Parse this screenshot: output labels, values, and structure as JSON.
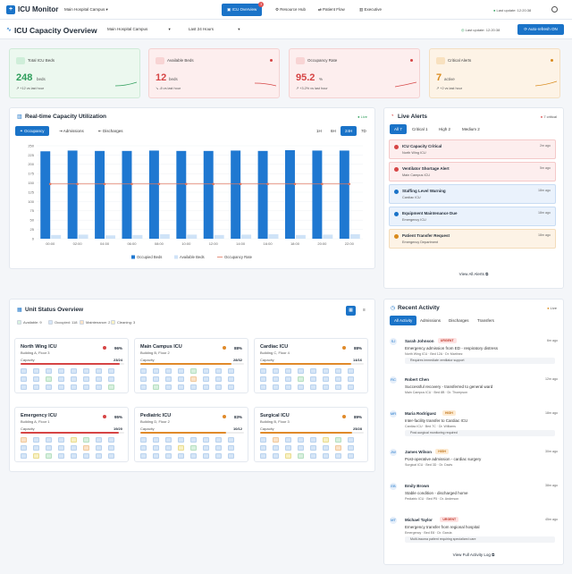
{
  "topbar": {
    "app_name": "ICU Monitor",
    "hospital_select": "Main Hospital Campus",
    "nav": [
      {
        "label": "ICU Overview",
        "active": true,
        "badge": "3"
      },
      {
        "label": "Resource Hub",
        "active": false
      },
      {
        "label": "Patient Flow",
        "active": false
      },
      {
        "label": "Executive",
        "active": false
      }
    ],
    "last_update": "Last update: 12:20:38"
  },
  "header": {
    "title": "ICU Capacity Overview",
    "campus_select": "Main Hospital Campus",
    "range_select": "Last 24 Hours",
    "last_update": "Last update: 12:20:38",
    "auto_refresh_label": "Auto-refresh ON"
  },
  "kpis": [
    {
      "label": "Total ICU Beds",
      "value": "248",
      "unit": "beds",
      "sub": "+12 vs last hour",
      "color": "#2e9e5b"
    },
    {
      "label": "Available Beds",
      "value": "12",
      "unit": "beds",
      "sub": "-8 vs last hour",
      "color": "#d64545"
    },
    {
      "label": "Occupancy Rate",
      "value": "95.2",
      "unit": "%",
      "sub": "+3.2% vs last hour",
      "color": "#d64545"
    },
    {
      "label": "Critical Alerts",
      "value": "7",
      "unit": "active",
      "sub": "+2 vs last hour",
      "color": "#d98a1c"
    }
  ],
  "utilization": {
    "title": "Real-time Capacity Utilization",
    "live_label": "Live",
    "tabs": [
      "Occupancy",
      "Admissions",
      "Discharges"
    ],
    "ranges": [
      "1H",
      "6H",
      "24H",
      "7D"
    ],
    "active_range": "24H"
  },
  "chart_data": {
    "type": "bar",
    "categories": [
      "00:00",
      "02:00",
      "04:00",
      "06:00",
      "08:00",
      "10:00",
      "12:00",
      "14:00",
      "16:00",
      "18:00",
      "20:00",
      "22:00"
    ],
    "series": [
      {
        "name": "Occupied Beds",
        "values": [
          235,
          237,
          236,
          236,
          237,
          236,
          236,
          237,
          236,
          238,
          237,
          237
        ],
        "color": "#1f78d1"
      },
      {
        "name": "Available Beds",
        "values": [
          10,
          11,
          9,
          10,
          12,
          11,
          10,
          11,
          12,
          10,
          11,
          12
        ],
        "color": "#cfe3f7"
      },
      {
        "name": "Occupancy Rate",
        "values": [
          95,
          95,
          95,
          95,
          95,
          95,
          95,
          95,
          95,
          95,
          95,
          95
        ],
        "color": "#e0775f"
      }
    ],
    "ylim": [
      0,
      250
    ],
    "yticks": [
      "0",
      "25",
      "50",
      "75",
      "100",
      "125",
      "150",
      "175",
      "200",
      "225",
      "250"
    ],
    "legend": "bottom"
  },
  "alerts": {
    "title": "Live Alerts",
    "count_label": "7 critical",
    "filters": [
      {
        "label": "All",
        "count": "7"
      },
      {
        "label": "Critical",
        "count": "1"
      },
      {
        "label": "High",
        "count": "2"
      },
      {
        "label": "Medium",
        "count": "2"
      }
    ],
    "items": [
      {
        "title": "ICU Capacity Critical",
        "sub": "North Wing ICU",
        "time": "2m ago",
        "bg": "#fdeeee",
        "border": "#f4c9c9",
        "dot": "#d64545"
      },
      {
        "title": "Ventilator Shortage Alert",
        "sub": "Main Campus ICU",
        "time": "5m ago",
        "bg": "#fdeeee",
        "border": "#f4c9c9",
        "dot": "#d64545"
      },
      {
        "title": "Staffing Level Warning",
        "sub": "Cardiac ICU",
        "time": "18m ago",
        "bg": "#eaf2fc",
        "border": "#c8dcf3",
        "dot": "#1a73c8"
      },
      {
        "title": "Equipment Maintenance Due",
        "sub": "Emergency ICU",
        "time": "18m ago",
        "bg": "#eaf2fc",
        "border": "#c8dcf3",
        "dot": "#1a73c8"
      },
      {
        "title": "Patient Transfer Request",
        "sub": "Emergency Department",
        "time": "18m ago",
        "bg": "#fdf3e6",
        "border": "#f3dcbb",
        "dot": "#d98a1c"
      }
    ],
    "view_all": "View All Alerts"
  },
  "units": {
    "title": "Unit Status Overview",
    "legend": [
      {
        "label": "Available: 9",
        "color": "#d8f0df"
      },
      {
        "label": "Occupied: 118",
        "color": "#d6e6f7"
      },
      {
        "label": "Maintenance: 2",
        "color": "#fbe3c9"
      },
      {
        "label": "Cleaning: 3",
        "color": "#f8f1c4"
      }
    ],
    "items": [
      {
        "name": "North Wing ICU",
        "loc": "Building A, Floor 3",
        "pct": "96%",
        "cap": "23/24",
        "fill": 0.96,
        "color": "#d64545"
      },
      {
        "name": "Main Campus ICU",
        "loc": "Building B, Floor 2",
        "pct": "88%",
        "cap": "28/32",
        "fill": 0.88,
        "color": "#e08a2a"
      },
      {
        "name": "Cardiac ICU",
        "loc": "Building C, Floor 4",
        "pct": "88%",
        "cap": "14/16",
        "fill": 0.88,
        "color": "#e08a2a"
      },
      {
        "name": "Emergency ICU",
        "loc": "Building A, Floor 1",
        "pct": "95%",
        "cap": "19/20",
        "fill": 0.95,
        "color": "#d64545"
      },
      {
        "name": "Pediatric ICU",
        "loc": "Building D, Floor 2",
        "pct": "83%",
        "cap": "10/12",
        "fill": 0.83,
        "color": "#e08a2a"
      },
      {
        "name": "Surgical ICU",
        "loc": "Building B, Floor 3",
        "pct": "89%",
        "cap": "25/28",
        "fill": 0.89,
        "color": "#e08a2a"
      }
    ],
    "capacity_label": "Capacity"
  },
  "activity": {
    "title": "Recent Activity",
    "live_label": "Live",
    "tabs": [
      "All Activity",
      "Admissions",
      "Discharges",
      "Transfers"
    ],
    "items": [
      {
        "initials": "SJ",
        "name": "Sarah Johnson",
        "tag": "URGENT",
        "tag_bg": "#fde2e2",
        "tag_fg": "#c0392b",
        "time": "6m ago",
        "desc": "Emergency admission from ED - respiratory distress",
        "meta": "North Wing ICU   ·   Bed 12A   ·   Dr. Martinez",
        "note": "Requires immediate ventilator support"
      },
      {
        "initials": "RC",
        "name": "Robert Chen",
        "tag": "",
        "time": "12m ago",
        "desc": "Successful recovery - transferred to general ward",
        "meta": "Main Campus ICU   ·   Bed 8B   ·   Dr. Thompson",
        "note": ""
      },
      {
        "initials": "MR",
        "name": "Maria Rodriguez",
        "tag": "HIGH",
        "tag_bg": "#fdebd3",
        "tag_fg": "#c0761c",
        "time": "18m ago",
        "desc": "Inter-facility transfer to Cardiac ICU",
        "meta": "Cardiac ICU   ·   Bed 7C   ·   Dr. Williams",
        "note": "Post-surgical monitoring required"
      },
      {
        "initials": "JW",
        "name": "James Wilson",
        "tag": "HIGH",
        "tag_bg": "#fdebd3",
        "tag_fg": "#c0761c",
        "time": "30m ago",
        "desc": "Post-operative admission - cardiac surgery",
        "meta": "Surgical ICU   ·   Bed 3D   ·   Dr. Davis",
        "note": ""
      },
      {
        "initials": "EB",
        "name": "Emily Brown",
        "tag": "",
        "time": "38m ago",
        "desc": "Stable condition - discharged home",
        "meta": "Pediatric ICU   ·   Bed P5   ·   Dr. Anderson",
        "note": ""
      },
      {
        "initials": "MT",
        "name": "Michael Taylor",
        "tag": "URGENT",
        "tag_bg": "#fde2e2",
        "tag_fg": "#c0392b",
        "time": "45m ago",
        "desc": "Emergency transfer from regional hospital",
        "meta": "Emergency   ·   Bed E8   ·   Dr. Garcia",
        "note": "Multi-trauma patient requiring specialized care"
      }
    ],
    "view_full": "View Full Activity Log"
  }
}
